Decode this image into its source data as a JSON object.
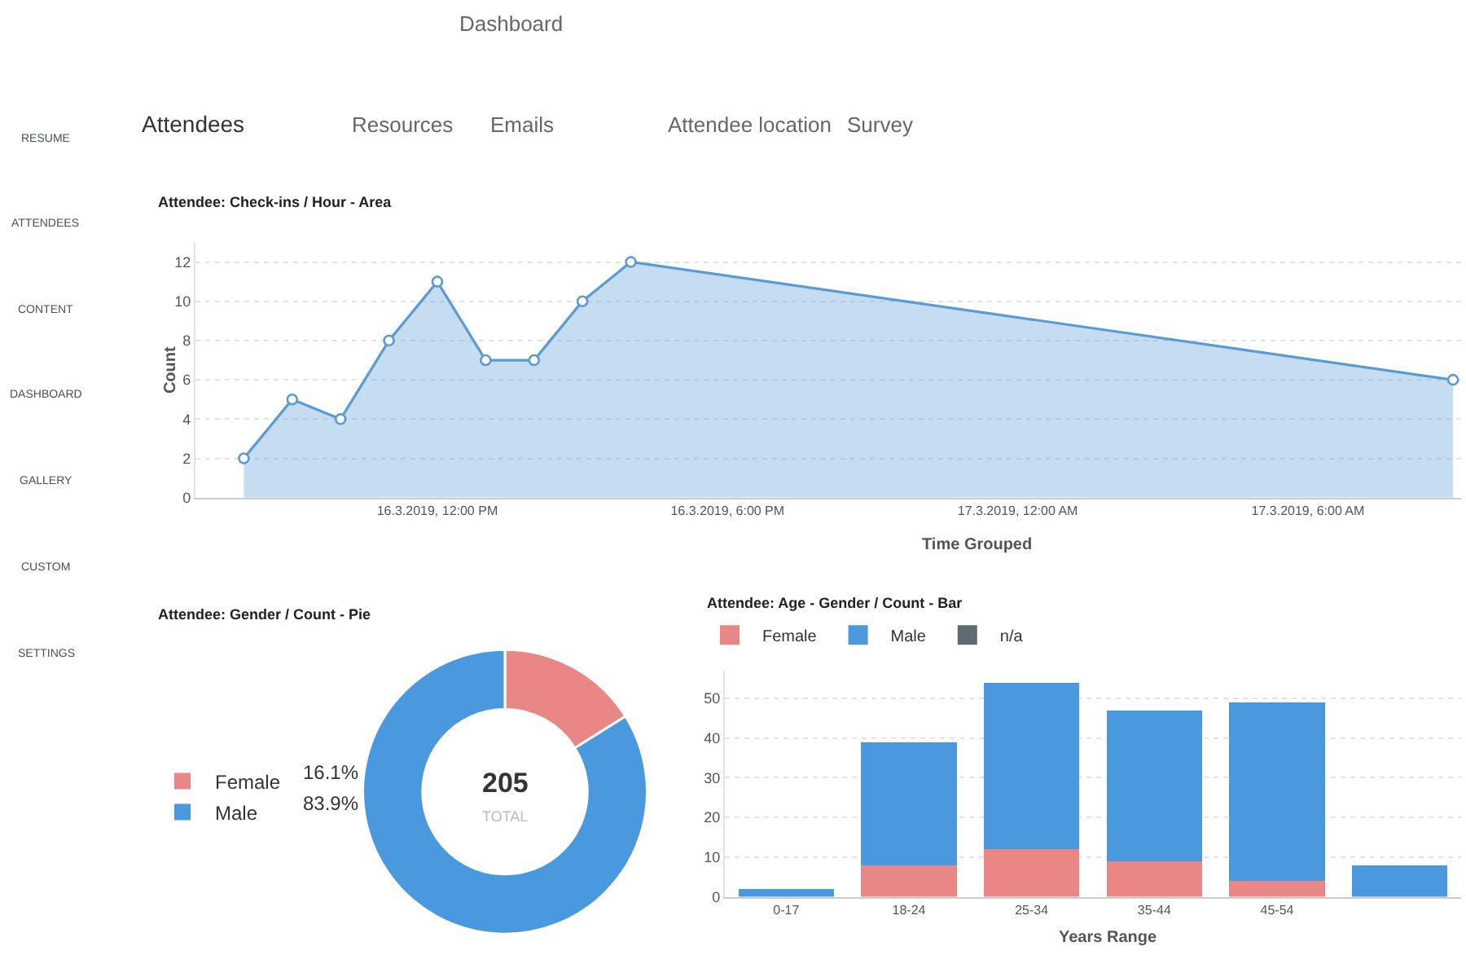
{
  "chart_data": [
    {
      "type": "other",
      "annotations": [
        "Dashboard",
        "Attendees",
        "Resources",
        "Emails",
        "Attendee location",
        "Survey",
        "RESUME",
        "ATTENDEES",
        "CONTENT",
        "DASHBOARD",
        "GALLERY",
        "CUSTOM",
        "SETTINGS"
      ]
    },
    {
      "type": "area",
      "title": "Attendee: Check-ins / Hour - Area",
      "xlabel": "Time Grouped",
      "ylabel": "Count",
      "x": [
        "2019-03-16T08:00",
        "2019-03-16T09:00",
        "2019-03-16T10:00",
        "2019-03-16T11:00",
        "2019-03-16T12:00",
        "2019-03-16T13:00",
        "2019-03-16T14:00",
        "2019-03-16T15:00",
        "2019-03-16T16:00",
        "2019-03-17T09:00"
      ],
      "series": [
        {
          "color": "#5b9bd5",
          "values": [
            2,
            5,
            4,
            8,
            11,
            7,
            7,
            10,
            12,
            6
          ]
        }
      ],
      "xlim": [
        "2019-03-16T07:00",
        "2019-03-17T09:10"
      ],
      "xticks": [
        {
          "value": "2019-03-16T12:00",
          "label": "16.3.2019, 12:00 PM"
        },
        {
          "value": "2019-03-16T18:00",
          "label": "16.3.2019, 6:00 PM"
        },
        {
          "value": "2019-03-17T00:00",
          "label": "17.3.2019, 12:00 AM"
        },
        {
          "value": "2019-03-17T06:00",
          "label": "17.3.2019, 6:00 AM"
        }
      ],
      "ylim": [
        0,
        13
      ],
      "yticks": [
        0,
        2,
        4,
        6,
        8,
        10,
        12
      ],
      "grid": "y",
      "marker": "circle",
      "legend": false
    },
    {
      "type": "donut",
      "title": "Attendee: Gender / Count - Pie",
      "categories": [
        "Female",
        "Male"
      ],
      "values": [
        16.1,
        83.9
      ],
      "colors": [
        "#e98686",
        "#4a98dd"
      ],
      "value_labels": [
        "16.1%",
        "83.9%"
      ],
      "annotations": [
        "205",
        "TOTAL"
      ],
      "legend": "left"
    },
    {
      "type": "bar",
      "title": "Attendee: Age - Gender / Count - Bar",
      "xlabel": "Years Range",
      "stacked": true,
      "categories": [
        "0-17",
        "18-24",
        "25-34",
        "35-44",
        "45-54",
        null
      ],
      "series": [
        {
          "name": "Female",
          "color": "#e98686",
          "values": [
            0,
            8,
            12,
            9,
            4,
            0
          ]
        },
        {
          "name": "Male",
          "color": "#4a98dd",
          "values": [
            2,
            31,
            42,
            38,
            45,
            8
          ]
        },
        {
          "name": "n/a",
          "color": "#5f6b73",
          "values": [
            null,
            null,
            null,
            null,
            null,
            null
          ]
        }
      ],
      "ylim": [
        0,
        57
      ],
      "yticks": [
        0,
        10,
        20,
        30,
        40,
        50
      ],
      "grid": "y",
      "legend": "top left"
    }
  ]
}
